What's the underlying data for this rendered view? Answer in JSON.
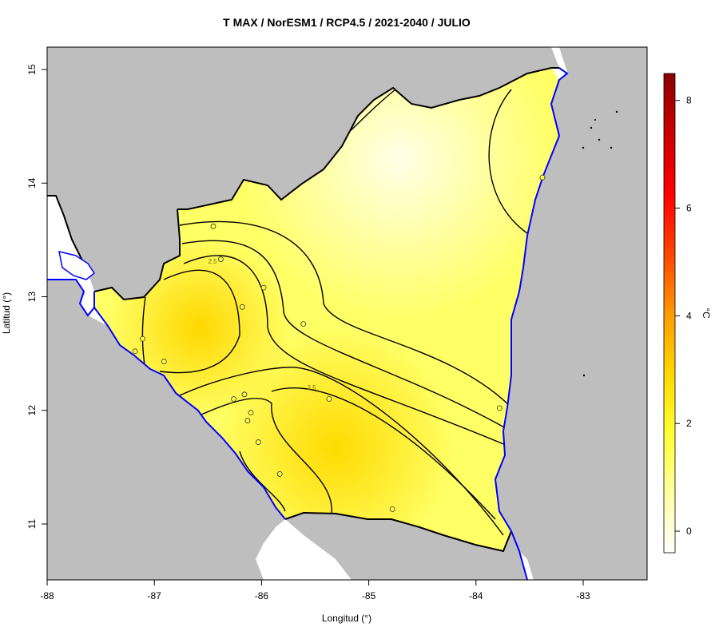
{
  "title": "T MAX / NorESM1 / RCP4.5 / 2021-2040 / JULIO",
  "x_axis": {
    "label": "Longitud (°)",
    "ticks": [
      "-88",
      "-87",
      "-86",
      "-85",
      "-84",
      "-83"
    ]
  },
  "y_axis": {
    "label": "Latitud (°)",
    "ticks": [
      "15",
      "14",
      "13",
      "12",
      "11"
    ]
  },
  "colorbar": {
    "unit": "°C",
    "ticks": [
      "8",
      "6",
      "4",
      "2",
      "0"
    ],
    "range": [
      -0.4,
      8.5
    ],
    "colors": [
      "#ffffff",
      "#ffffa0",
      "#ffff33",
      "#ffd700",
      "#ff9900",
      "#ff4400",
      "#ff0000",
      "#cc0000",
      "#8b0000"
    ]
  },
  "contour_labels": [
    "2.5",
    "2.5"
  ],
  "colors": {
    "land_outside": "#bebebe",
    "coastline": "#0000ff",
    "border": "#000000",
    "station": "#ffff44"
  },
  "stations": [
    {
      "lon": -86.45,
      "lat": 13.62
    },
    {
      "lon": -86.38,
      "lat": 13.33
    },
    {
      "lon": -85.98,
      "lat": 13.08
    },
    {
      "lon": -86.18,
      "lat": 12.91
    },
    {
      "lon": -85.61,
      "lat": 12.76
    },
    {
      "lon": -87.11,
      "lat": 12.63
    },
    {
      "lon": -87.18,
      "lat": 12.52
    },
    {
      "lon": -86.91,
      "lat": 12.43
    },
    {
      "lon": -86.26,
      "lat": 12.1
    },
    {
      "lon": -86.16,
      "lat": 12.14
    },
    {
      "lon": -85.37,
      "lat": 12.1
    },
    {
      "lon": -86.1,
      "lat": 11.98
    },
    {
      "lon": -86.13,
      "lat": 11.91
    },
    {
      "lon": -86.03,
      "lat": 11.72
    },
    {
      "lon": -85.83,
      "lat": 11.44
    },
    {
      "lon": -84.78,
      "lat": 11.13
    },
    {
      "lon": -83.78,
      "lat": 12.02
    },
    {
      "lon": -83.38,
      "lat": 14.05
    }
  ]
}
